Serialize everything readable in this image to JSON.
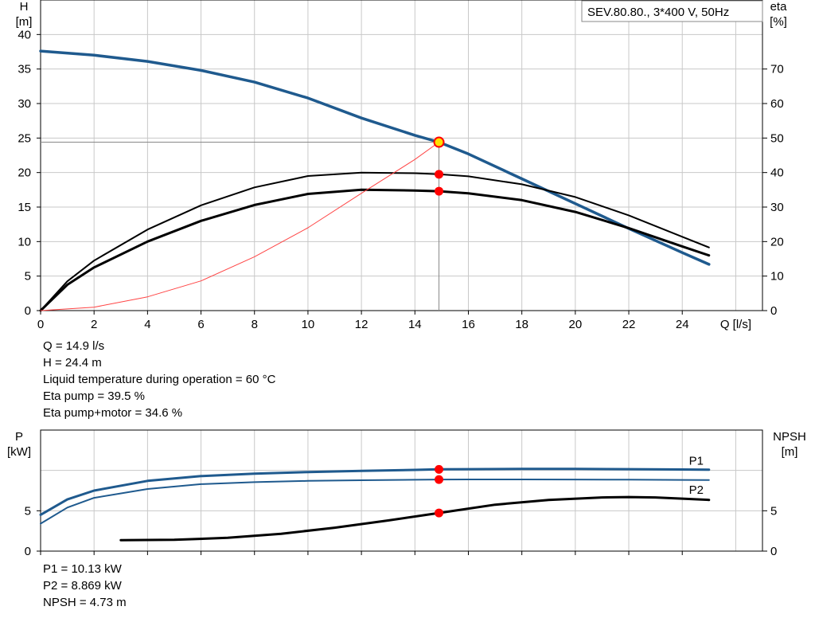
{
  "pump_label": "SEV.80.80., 3*400 V, 50Hz",
  "colors": {
    "head": "#1f5a8e",
    "power": "#1f5a8e",
    "eta": "#000000",
    "npsh": "#000000",
    "system": "#ff4444",
    "point": "#ff0000",
    "duty_point": "#ffe000",
    "grid": "#c8c8c8"
  },
  "chart_data": [
    {
      "type": "line",
      "title": "SEV.80.80., 3*400 V, 50Hz",
      "xlabel": "Q [l/s]",
      "ylabel": "H\n[m]",
      "y2label": "eta\n[%]",
      "xlim": [
        0,
        27
      ],
      "ylim": [
        0,
        45
      ],
      "y2lim": [
        0,
        90
      ],
      "xticks": [
        0,
        2,
        4,
        6,
        8,
        10,
        12,
        14,
        16,
        18,
        20,
        22,
        24
      ],
      "yticks": [
        0,
        5,
        10,
        15,
        20,
        25,
        30,
        35,
        40
      ],
      "y2ticks": [
        0,
        10,
        20,
        30,
        40,
        50,
        60,
        70
      ],
      "grid": true,
      "series": [
        {
          "axis": "y",
          "x": [
            0,
            2,
            4,
            6,
            8,
            10,
            12,
            14,
            14.9,
            16,
            18,
            20,
            22,
            24,
            25
          ],
          "y": [
            37.6,
            37.0,
            36.1,
            34.8,
            33.1,
            30.8,
            27.9,
            25.4,
            24.4,
            22.7,
            19.1,
            15.5,
            11.9,
            8.4,
            6.7
          ]
        },
        {
          "axis": "y2",
          "x": [
            0,
            1,
            2,
            4,
            6,
            8,
            10,
            12,
            14,
            14.9,
            16,
            18,
            20,
            22,
            24,
            25
          ],
          "y": [
            0,
            8.5,
            14.5,
            23.5,
            30.5,
            35.7,
            39.0,
            40.0,
            39.8,
            39.5,
            38.9,
            36.6,
            32.9,
            27.6,
            21.4,
            18.3
          ]
        },
        {
          "axis": "y2",
          "x": [
            0,
            1,
            2,
            4,
            6,
            8,
            10,
            12,
            14,
            14.9,
            16,
            18,
            20,
            22,
            24,
            25
          ],
          "y": [
            0,
            7.5,
            12.5,
            20.0,
            26.0,
            30.6,
            33.8,
            35.0,
            34.8,
            34.6,
            34.0,
            32.0,
            28.6,
            23.9,
            18.6,
            16.0
          ]
        },
        {
          "axis": "y",
          "x": [
            0,
            2,
            4,
            6,
            8,
            10,
            12,
            14,
            14.9
          ],
          "y": [
            0,
            0.5,
            2.0,
            4.3,
            7.8,
            12.0,
            17.0,
            21.9,
            24.4
          ]
        }
      ],
      "points": [
        {
          "x": 14.9,
          "y": 24.4,
          "axis": "y"
        },
        {
          "x": 14.9,
          "y": 39.5,
          "axis": "y2"
        },
        {
          "x": 14.9,
          "y": 34.6,
          "axis": "y2"
        }
      ]
    },
    {
      "type": "line",
      "ylabel": "P\n[kW]",
      "y2label": "NPSH\n[m]",
      "xlim": [
        0,
        27
      ],
      "ylim": [
        0,
        15
      ],
      "y2lim": [
        0,
        15
      ],
      "xticks": [
        0,
        2,
        4,
        6,
        8,
        10,
        12,
        14,
        16,
        18,
        20,
        22,
        24
      ],
      "yticks": [
        0,
        5
      ],
      "y2ticks": [
        0,
        5
      ],
      "grid": true,
      "series": [
        {
          "name": "P1",
          "axis": "y",
          "x": [
            0,
            1,
            2,
            4,
            6,
            8,
            10,
            12,
            14,
            14.9,
            16,
            18,
            20,
            22,
            24,
            25
          ],
          "y": [
            4.5,
            6.4,
            7.5,
            8.7,
            9.3,
            9.6,
            9.8,
            9.95,
            10.07,
            10.13,
            10.15,
            10.18,
            10.18,
            10.15,
            10.12,
            10.1
          ]
        },
        {
          "name": "P2",
          "axis": "y",
          "x": [
            0,
            1,
            2,
            4,
            6,
            8,
            10,
            12,
            14,
            14.9,
            16,
            18,
            20,
            22,
            24,
            25
          ],
          "y": [
            3.4,
            5.4,
            6.6,
            7.7,
            8.3,
            8.55,
            8.7,
            8.78,
            8.84,
            8.869,
            8.88,
            8.88,
            8.87,
            8.85,
            8.82,
            8.8
          ]
        },
        {
          "axis": "y2",
          "x": [
            3,
            5,
            7,
            9,
            11,
            13,
            14.9,
            17,
            19,
            21,
            22,
            23,
            24,
            25
          ],
          "y": [
            1.35,
            1.4,
            1.65,
            2.15,
            2.9,
            3.8,
            4.73,
            5.75,
            6.35,
            6.65,
            6.7,
            6.65,
            6.5,
            6.35
          ]
        }
      ],
      "points": [
        {
          "x": 14.9,
          "y": 10.13,
          "axis": "y"
        },
        {
          "x": 14.9,
          "y": 8.869,
          "axis": "y"
        },
        {
          "x": 14.9,
          "y": 4.73,
          "axis": "y2"
        }
      ]
    }
  ],
  "readouts": {
    "q": "Q = 14.9 l/s",
    "h": "H = 24.4 m",
    "temp": "Liquid temperature during operation = 60 °C",
    "eta_pump": "Eta pump = 39.5 %",
    "eta_total": "Eta pump+motor = 34.6 %",
    "p1": "P1 = 10.13 kW",
    "p2": "P2 = 8.869 kW",
    "npsh": "NPSH = 4.73 m"
  }
}
